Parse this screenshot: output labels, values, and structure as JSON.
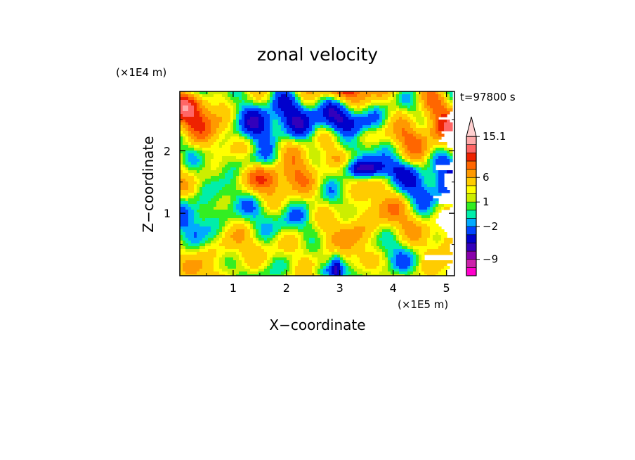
{
  "chart_data": {
    "type": "heatmap",
    "title": "zonal velocity",
    "xlabel": "X−coordinate",
    "ylabel": "Z−coordinate",
    "x_unit": "(×1E5 m)",
    "y_unit": "(×1E4 m)",
    "time_label": "t=97800 s",
    "xlim": [
      0,
      5.15
    ],
    "ylim": [
      0,
      2.95
    ],
    "x_ticks": [
      {
        "value": 1,
        "label": "1"
      },
      {
        "value": 2,
        "label": "2"
      },
      {
        "value": 3,
        "label": "3"
      },
      {
        "value": 4,
        "label": "4"
      },
      {
        "value": 5,
        "label": "5"
      }
    ],
    "y_ticks": [
      {
        "value": 1,
        "label": "1"
      },
      {
        "value": 2,
        "label": "2"
      }
    ],
    "colorbar": {
      "levels": [
        -13,
        -11,
        -9,
        -7,
        -5,
        -3,
        -2,
        -1,
        0,
        1,
        2,
        4,
        6,
        8,
        10,
        12,
        15.1
      ],
      "colors": [
        "#ff00cc",
        "#cc22aa",
        "#8800aa",
        "#3300bb",
        "#0000cc",
        "#0044ff",
        "#00aaff",
        "#00eeaa",
        "#33ee22",
        "#ccee00",
        "#ffff00",
        "#ffcc00",
        "#ff9900",
        "#ff6600",
        "#ee2200",
        "#ff6666",
        "#ffaaaa",
        "#ffd0d0"
      ],
      "labels": [
        {
          "value": 15.1,
          "label": "15.1"
        },
        {
          "value": 6,
          "label": "6"
        },
        {
          "value": 1,
          "label": "1"
        },
        {
          "value": -2,
          "label": "−2"
        },
        {
          "value": -9,
          "label": "−9"
        }
      ],
      "extend_top": true
    }
  }
}
